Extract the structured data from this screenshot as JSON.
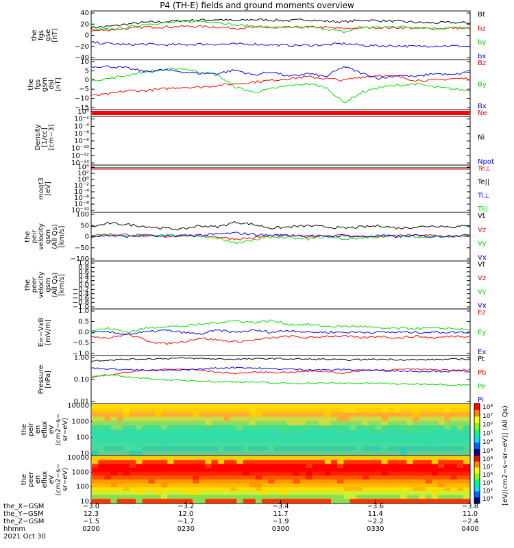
{
  "title": "P4 (TH-E) fields and ground moments overview",
  "colors": {
    "black": "#000000",
    "red": "#ff0000",
    "green": "#00dd00",
    "blue": "#0000ff"
  },
  "chart_data": [
    {
      "type": "line",
      "ylabel": [
        "the",
        "fgs",
        "gse",
        "[nT]"
      ],
      "yticks": [
        "40",
        "20",
        "0",
        "−20",
        "−40"
      ],
      "ylim": [
        -40,
        45
      ],
      "series": [
        {
          "name": "Bt",
          "color": "black",
          "values": [
            16,
            18,
            22,
            25,
            26,
            28,
            29,
            30,
            28,
            30,
            29,
            28,
            30,
            27,
            26,
            29,
            28,
            27,
            25,
            24,
            25,
            24
          ]
        },
        {
          "name": "bz",
          "color": "red",
          "values": [
            10,
            12,
            14,
            17,
            17,
            18,
            18,
            17,
            15,
            16,
            16,
            16,
            17,
            16,
            14,
            16,
            16,
            16,
            15,
            14,
            15,
            14
          ]
        },
        {
          "name": "by",
          "color": "green",
          "values": [
            12,
            13,
            16,
            22,
            24,
            26,
            27,
            26,
            20,
            19,
            16,
            15,
            17,
            14,
            8,
            16,
            16,
            18,
            16,
            15,
            16,
            15
          ]
        },
        {
          "name": "bx",
          "color": "blue",
          "values": [
            -10,
            -12,
            -14,
            -13,
            -14,
            -14,
            -13,
            -13,
            -13,
            -13,
            -14,
            -15,
            -15,
            -14,
            -12,
            -15,
            -16,
            -16,
            -17,
            -16,
            -16,
            -17
          ]
        }
      ]
    },
    {
      "type": "line",
      "ylabel": [
        "the",
        "fgs",
        "gsm",
        "dsl",
        "[nT]"
      ],
      "yticks": [
        "10",
        "5",
        "0",
        "−5",
        "−10",
        "−15"
      ],
      "ylim": [
        -18,
        11
      ],
      "series": [
        {
          "name": "Bz",
          "color": "red",
          "values": [
            -10,
            -9,
            -7,
            -7,
            -6,
            -5,
            -5,
            -4,
            -3,
            -2,
            -1,
            0,
            1,
            0,
            -1,
            1,
            2,
            1,
            -1,
            -1,
            0,
            0
          ]
        },
        {
          "name": "By",
          "color": "green",
          "values": [
            -1,
            0,
            2,
            4,
            5,
            6,
            4,
            2,
            -5,
            -8,
            -6,
            -4,
            -3,
            -5,
            -14,
            -8,
            -5,
            -4,
            -3,
            -5,
            -6,
            -7
          ]
        },
        {
          "name": "Bx",
          "color": "blue",
          "values": [
            7,
            7,
            6,
            4,
            5,
            4,
            3,
            3,
            5,
            2,
            4,
            1,
            3,
            1,
            7,
            3,
            0,
            2,
            1,
            3,
            2,
            4
          ]
        }
      ]
    },
    {
      "type": "line",
      "ylabel": [
        "Density",
        "[1/cc]",
        "[cm−3]"
      ],
      "yticks": [
        "10⁰",
        "10⁻²",
        "10⁻⁴",
        "10⁻⁶",
        "10⁻⁸",
        "10⁻¹⁰",
        "10⁻¹²",
        "10⁻¹⁴"
      ],
      "log": true,
      "series": [
        {
          "name": "Ne",
          "color": "red"
        },
        {
          "name": "Ni",
          "color": "black"
        },
        {
          "name": "Npot",
          "color": "blue"
        }
      ]
    },
    {
      "type": "line",
      "ylabel": [
        "moqt3",
        "[eV]"
      ],
      "yticks": [
        "10⁴",
        "10²",
        "10⁰",
        "10⁻²",
        "10⁻⁴",
        "10⁻⁶",
        "10⁻⁸",
        "10⁻¹⁰"
      ],
      "log": true,
      "series": [
        {
          "name": "Te⊥",
          "color": "red"
        },
        {
          "name": "Te||",
          "color": "black"
        },
        {
          "name": "Ti⊥",
          "color": "blue"
        },
        {
          "name": "Ti||",
          "color": "green"
        }
      ]
    },
    {
      "type": "line",
      "ylabel": [
        "the",
        "peir",
        "velocity",
        "gsm",
        "(All Qs)",
        "[km/s]"
      ],
      "yticks": [
        "100",
        "50",
        "0",
        "−50",
        "−100"
      ],
      "ylim": [
        -100,
        100
      ],
      "series": [
        {
          "name": "Vt",
          "color": "black",
          "values": [
            40,
            55,
            50,
            42,
            35,
            30,
            45,
            40,
            60,
            50,
            35,
            40,
            45,
            40,
            35,
            40,
            45,
            35,
            40,
            45,
            40,
            45
          ]
        },
        {
          "name": "Vz",
          "color": "red",
          "values": [
            5,
            10,
            8,
            5,
            0,
            5,
            5,
            0,
            -10,
            -5,
            5,
            5,
            0,
            5,
            5,
            0,
            0,
            5,
            5,
            5,
            0,
            5
          ]
        },
        {
          "name": "Vy",
          "color": "green",
          "values": [
            5,
            5,
            5,
            0,
            5,
            5,
            0,
            -5,
            -25,
            -15,
            0,
            -5,
            -10,
            0,
            -10,
            -5,
            0,
            0,
            0,
            0,
            0,
            5
          ]
        },
        {
          "name": "Vx",
          "color": "blue",
          "values": [
            0,
            5,
            0,
            5,
            0,
            5,
            5,
            10,
            15,
            10,
            5,
            5,
            5,
            0,
            5,
            0,
            5,
            0,
            5,
            0,
            5,
            5
          ]
        }
      ]
    },
    {
      "type": "line",
      "ylabel": [
        "the",
        "peer",
        "velocity",
        "gsm",
        "(All Qs)",
        "[km/s]"
      ],
      "yticks": [
        "1.0",
        "0.8",
        "0.6",
        "0.4",
        "0.2",
        "0.0",
        "−0.2",
        "−0.4",
        "−0.6",
        "−0.8",
        "−1.0"
      ],
      "ylim": [
        -1,
        1
      ],
      "series": [
        {
          "name": "Vt",
          "color": "black"
        },
        {
          "name": "Vz",
          "color": "red"
        },
        {
          "name": "Vy",
          "color": "green"
        },
        {
          "name": "Vx",
          "color": "blue"
        }
      ]
    },
    {
      "type": "line",
      "ylabel": [
        "E=−VxB",
        "[mV/m]"
      ],
      "yticks": [
        "1.0",
        "0.5",
        "0.0",
        "−0.5",
        "−1.0"
      ],
      "ylim": [
        -1.2,
        1.2
      ],
      "series": [
        {
          "name": "Ez",
          "color": "red",
          "values": [
            -0.2,
            -0.3,
            -0.1,
            -0.4,
            -0.6,
            -0.5,
            -0.3,
            -0.4,
            -0.5,
            -0.4,
            -0.3,
            -0.2,
            -0.3,
            -0.2,
            -0.2,
            -0.3,
            -0.2,
            -0.3,
            -0.2,
            -0.3,
            -0.2,
            -0.2
          ]
        },
        {
          "name": "Ey",
          "color": "green",
          "values": [
            0.1,
            0.2,
            0.0,
            0.2,
            0.3,
            0.3,
            0.4,
            0.5,
            0.6,
            0.5,
            0.6,
            0.4,
            0.4,
            0.3,
            0.3,
            0.3,
            0.2,
            0.2,
            0.2,
            0.2,
            0.2,
            0.1
          ]
        },
        {
          "name": "Ex",
          "color": "blue",
          "values": [
            0.0,
            0.0,
            -0.1,
            0.0,
            0.1,
            0.0,
            -0.1,
            0.1,
            0.0,
            0.1,
            0.0,
            0.1,
            0.0,
            0.0,
            0.0,
            0.0,
            0.0,
            0.0,
            0.0,
            0.0,
            0.0,
            0.0
          ]
        }
      ]
    },
    {
      "type": "line",
      "ylabel": [
        "Pressure",
        "[nPa]"
      ],
      "yticks": [
        "1.00",
        "0.10",
        "0.01"
      ],
      "log": true,
      "ylim": [
        0.01,
        1.0
      ],
      "series": [
        {
          "name": "Pt",
          "color": "black",
          "values": [
            0.6,
            0.65,
            0.7,
            0.72,
            0.75,
            0.78,
            0.75,
            0.72,
            0.7,
            0.72,
            0.75,
            0.72,
            0.7,
            0.7,
            0.65,
            0.68,
            0.7,
            0.68,
            0.66,
            0.68,
            0.7,
            0.72
          ]
        },
        {
          "name": "Pb",
          "color": "red",
          "values": [
            0.12,
            0.16,
            0.2,
            0.24,
            0.26,
            0.27,
            0.25,
            0.2,
            0.18,
            0.2,
            0.2,
            0.2,
            0.22,
            0.22,
            0.18,
            0.24,
            0.25,
            0.26,
            0.27,
            0.26,
            0.25,
            0.26
          ]
        },
        {
          "name": "Pe",
          "color": "green",
          "values": [
            0.13,
            0.15,
            0.13,
            0.11,
            0.1,
            0.09,
            0.09,
            0.08,
            0.08,
            0.08,
            0.07,
            0.07,
            0.07,
            0.07,
            0.07,
            0.07,
            0.07,
            0.065,
            0.065,
            0.065,
            0.06,
            0.06
          ]
        },
        {
          "name": "Pi",
          "color": "blue",
          "values": [
            0.3,
            0.28,
            0.26,
            0.24,
            0.24,
            0.25,
            0.27,
            0.3,
            0.32,
            0.3,
            0.28,
            0.27,
            0.26,
            0.25,
            0.26,
            0.25,
            0.24,
            0.23,
            0.22,
            0.22,
            0.22,
            0.22
          ]
        }
      ]
    },
    {
      "type": "heatmap",
      "ylabel": [
        "the",
        "peir",
        "en",
        "eflux",
        "eV",
        "(cm2−s−",
        "sr−eV)"
      ],
      "yticks": [
        "10000",
        "1000",
        "100",
        "10"
      ],
      "log": true,
      "colorbar": {
        "label": "[eV/(cm2−s−sr−eV)] (All Qs)",
        "ticks": [
          "10⁸",
          "10⁷",
          "10⁶",
          "10⁵",
          "10⁴",
          "10³"
        ]
      }
    },
    {
      "type": "heatmap",
      "ylabel": [
        "the",
        "peer",
        "en",
        "eflux",
        "eV",
        "(cm2−s−",
        "sr−eV)"
      ],
      "yticks": [
        "10000",
        "1000",
        "100",
        "10"
      ],
      "log": true,
      "colorbar": {
        "label": "[eV/(cm2−s−sr−eV)] (All Qs)",
        "ticks": [
          "10⁸",
          "10⁷",
          "10⁶",
          "10⁵",
          "10⁴",
          "10³"
        ]
      }
    }
  ],
  "x_axis": {
    "row_labels": [
      "the_X−GSM",
      "the_Y−GSM",
      "the_Z−GSM",
      "hhmm",
      "2021 Oct 30"
    ],
    "ticks": [
      {
        "x": "−3.0",
        "y": "12.3",
        "z": "−1.5",
        "time": "0200"
      },
      {
        "x": "−3.2",
        "y": "12.0",
        "z": "−1.7",
        "time": "0230"
      },
      {
        "x": "−3.4",
        "y": "11.7",
        "z": "−1.9",
        "time": "0300"
      },
      {
        "x": "−3.6",
        "y": "11.4",
        "z": "−2.2",
        "time": "0330"
      },
      {
        "x": "−3.8",
        "y": "11.0",
        "z": "−2.4",
        "time": "0400"
      }
    ]
  }
}
